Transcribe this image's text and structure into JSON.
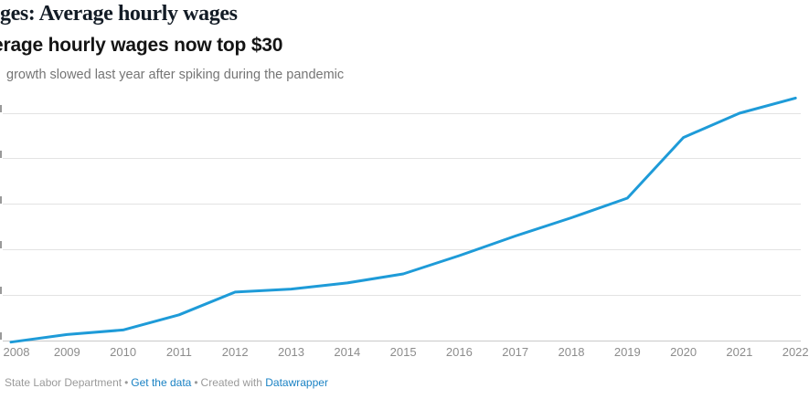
{
  "kicker": {
    "text": "ges: Average hourly wages"
  },
  "title": {
    "text": "erage hourly wages now top $30"
  },
  "description": {
    "text": "growth slowed last year after spiking during the pandemic"
  },
  "footer": {
    "source_text": "State Labor Department",
    "separator": "•",
    "get_data_label": "Get the data",
    "created_with_label": "Created with",
    "brand_label": "Datawrapper",
    "link_color": "#1a82c4",
    "text_color": "#9a9a9a"
  },
  "chart_data": {
    "type": "line",
    "title": "erage hourly wages now top $30",
    "subtitle": "growth slowed last year after spiking during the pandemic",
    "categories": [
      "2008",
      "2009",
      "2010",
      "2011",
      "2012",
      "2013",
      "2014",
      "2015",
      "2016",
      "2017",
      "2018",
      "2019",
      "2020",
      "2021",
      "2022"
    ],
    "values": [
      14.9,
      15.4,
      15.7,
      16.7,
      18.2,
      18.4,
      18.8,
      19.4,
      20.6,
      21.9,
      23.1,
      24.4,
      28.4,
      30.0,
      31.0
    ],
    "unit": "$ per hour",
    "xlabel": "",
    "ylabel": "",
    "ylim": [
      15,
      31
    ],
    "y_gridline_values_inferred": [
      15,
      18,
      21,
      24,
      27,
      30
    ],
    "y_tick_labels_visible": false,
    "grid": true,
    "legend": "none",
    "line_color": "#1e9bd8"
  }
}
